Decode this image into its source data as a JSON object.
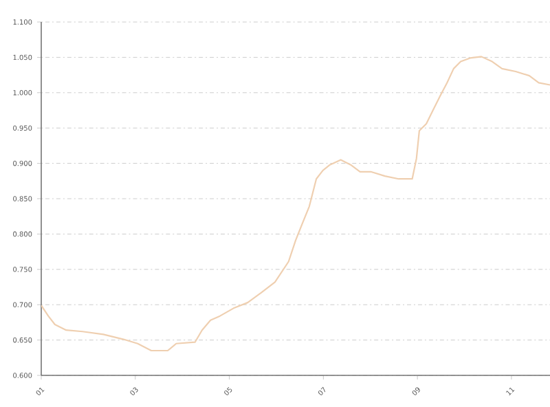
{
  "chart_data": {
    "type": "line",
    "color": "#efcfb0",
    "grid": "y",
    "marker": "none",
    "line_style": "solid",
    "x": [
      1.0,
      1.15,
      1.29,
      1.53,
      1.88,
      2.32,
      2.75,
      3.05,
      3.34,
      3.69,
      3.87,
      4.27,
      4.42,
      4.6,
      4.8,
      5.09,
      5.39,
      5.68,
      5.97,
      6.26,
      6.41,
      6.56,
      6.7,
      6.85,
      6.99,
      7.14,
      7.37,
      7.58,
      7.78,
      8.02,
      8.31,
      8.6,
      8.89,
      8.98,
      9.04,
      9.19,
      9.33,
      9.48,
      9.63,
      9.77,
      9.92,
      10.12,
      10.36,
      10.59,
      10.8,
      11.09,
      11.38,
      11.58,
      11.82
    ],
    "values": [
      0.699,
      0.684,
      0.672,
      0.664,
      0.662,
      0.658,
      0.651,
      0.645,
      0.635,
      0.635,
      0.645,
      0.647,
      0.664,
      0.678,
      0.684,
      0.695,
      0.703,
      0.717,
      0.732,
      0.761,
      0.791,
      0.816,
      0.839,
      0.878,
      0.89,
      0.898,
      0.905,
      0.898,
      0.888,
      0.888,
      0.882,
      0.878,
      0.878,
      0.907,
      0.946,
      0.956,
      0.975,
      0.995,
      1.014,
      1.034,
      1.044,
      1.049,
      1.051,
      1.044,
      1.034,
      1.03,
      1.024,
      1.014,
      1.011
    ],
    "xlim": [
      1,
      11.82
    ],
    "xticks": [
      {
        "value": 1,
        "label": "01"
      },
      {
        "value": 3,
        "label": "03"
      },
      {
        "value": 5,
        "label": "05"
      },
      {
        "value": 7,
        "label": "07"
      },
      {
        "value": 9,
        "label": "09"
      },
      {
        "value": 11,
        "label": "11"
      }
    ],
    "ylim": [
      0.6,
      1.1
    ],
    "yticks": [
      {
        "value": 0.6,
        "label": "0.600"
      },
      {
        "value": 0.65,
        "label": "0.650"
      },
      {
        "value": 0.7,
        "label": "0.700"
      },
      {
        "value": 0.75,
        "label": "0.750"
      },
      {
        "value": 0.8,
        "label": "0.800"
      },
      {
        "value": 0.85,
        "label": "0.850"
      },
      {
        "value": 0.9,
        "label": "0.900"
      },
      {
        "value": 0.95,
        "label": "0.950"
      },
      {
        "value": 1.0,
        "label": "1.000"
      },
      {
        "value": 1.05,
        "label": "1.050"
      },
      {
        "value": 1.1,
        "label": "1.100"
      }
    ]
  }
}
